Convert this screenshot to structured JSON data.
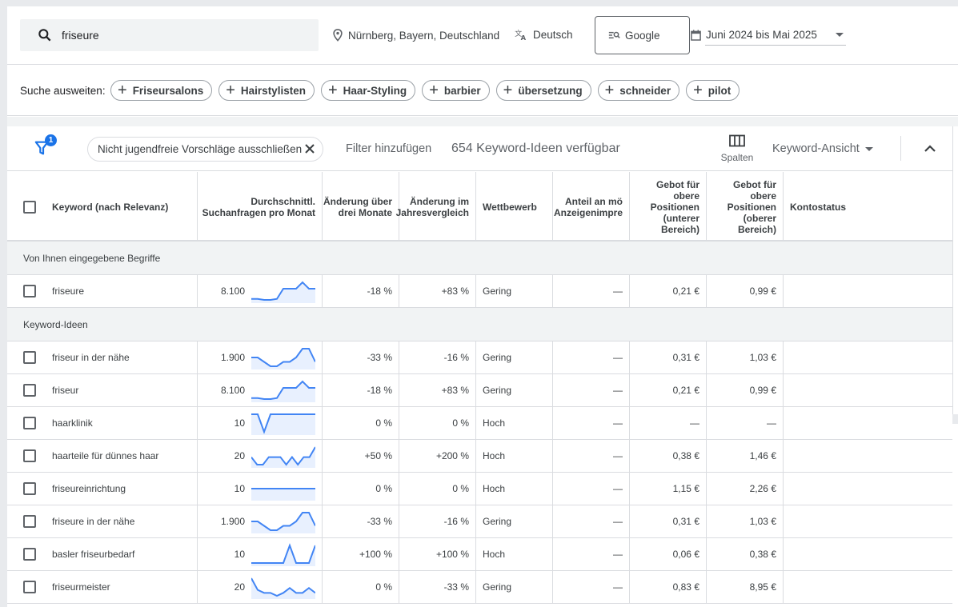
{
  "search": {
    "query": "friseure",
    "location": "Nürnberg, Bayern, Deutschland",
    "language": "Deutsch",
    "network": "Google",
    "date_range": "Juni 2024 bis Mai 2025"
  },
  "broaden": {
    "label": "Suche ausweiten:",
    "chips": [
      "Friseursalons",
      "Hairstylisten",
      "Haar-Styling",
      "barbier",
      "übersetzung",
      "schneider",
      "pilot"
    ]
  },
  "filterbar": {
    "filter_count": "1",
    "active_filter": "Nicht jugendfreie Vorschläge ausschließen",
    "add_filter": "Filter hinzufügen",
    "idea_count": "654 Keyword-Ideen verfügbar",
    "columns_label": "Spalten",
    "view_label": "Keyword-Ansicht"
  },
  "columns": {
    "keyword": "Keyword (nach Relevanz)",
    "avg_searches": "Durchschnittl. Suchanfragen pro Monat",
    "change_3m": "Änderung über drei Monate",
    "change_yoy": "Änderung im Jahresvergleich",
    "competition": "Wettbewerb",
    "impression_share": "Anteil an mö Anzeigenimpre",
    "bid_low": "Gebot für obere Positionen (unterer Bereich)",
    "bid_high": "Gebot für obere Positionen (oberer Bereich)",
    "account_status": "Kontostatus"
  },
  "sections": {
    "entered": "Von Ihnen eingegebene Begriffe",
    "ideas": "Keyword-Ideen"
  },
  "entered_rows": [
    {
      "keyword": "friseure",
      "searches": "8.100",
      "trend": [
        2,
        2,
        1.6,
        1.6,
        2,
        6,
        6,
        6,
        8.5,
        6,
        6
      ],
      "change_3m": "-18 %",
      "change_yoy": "+83 %",
      "competition": "Gering",
      "share": "—",
      "bid_low": "0,21 €",
      "bid_high": "0,99 €"
    }
  ],
  "idea_rows": [
    {
      "keyword": "friseur in der nähe",
      "searches": "1.900",
      "trend": [
        6,
        6,
        4,
        2,
        2,
        4,
        4,
        6,
        10,
        10,
        4
      ],
      "change_3m": "-33 %",
      "change_yoy": "-16 %",
      "competition": "Gering",
      "share": "—",
      "bid_low": "0,31 €",
      "bid_high": "1,03 €"
    },
    {
      "keyword": "friseur",
      "searches": "8.100",
      "trend": [
        2,
        2,
        1.6,
        1.6,
        2,
        6,
        6,
        6,
        8.5,
        6,
        6
      ],
      "change_3m": "-18 %",
      "change_yoy": "+83 %",
      "competition": "Gering",
      "share": "—",
      "bid_low": "0,21 €",
      "bid_high": "0,99 €"
    },
    {
      "keyword": "haarklinik",
      "searches": "10",
      "trend": [
        10,
        10,
        0,
        10,
        10,
        10,
        10,
        10,
        10,
        10,
        10
      ],
      "change_3m": "0 %",
      "change_yoy": "0 %",
      "competition": "Hoch",
      "share": "—",
      "bid_low": "—",
      "bid_high": "—"
    },
    {
      "keyword": "haarteile für dünnes haar",
      "searches": "20",
      "trend": [
        4,
        1,
        1,
        4,
        4,
        4,
        1,
        4,
        1,
        4,
        4,
        8
      ],
      "change_3m": "+50 %",
      "change_yoy": "+200 %",
      "competition": "Hoch",
      "share": "—",
      "bid_low": "0,38 €",
      "bid_high": "1,46 €"
    },
    {
      "keyword": "friseureinrichtung",
      "searches": "10",
      "trend": [
        5,
        5,
        5,
        5,
        5,
        5,
        5,
        5,
        5,
        5,
        5
      ],
      "change_3m": "0 %",
      "change_yoy": "0 %",
      "competition": "Hoch",
      "share": "—",
      "bid_low": "1,15 €",
      "bid_high": "2,26 €"
    },
    {
      "keyword": "friseure in der nähe",
      "searches": "1.900",
      "trend": [
        6,
        6,
        4,
        2,
        2,
        4,
        4,
        6,
        10,
        10,
        4
      ],
      "change_3m": "-33 %",
      "change_yoy": "-16 %",
      "competition": "Gering",
      "share": "—",
      "bid_low": "0,31 €",
      "bid_high": "1,03 €"
    },
    {
      "keyword": "basler friseurbedarf",
      "searches": "10",
      "trend": [
        0,
        0,
        0,
        0,
        0,
        0,
        10,
        0,
        0,
        0,
        10
      ],
      "change_3m": "+100 %",
      "change_yoy": "+100 %",
      "competition": "Hoch",
      "share": "—",
      "bid_low": "0,06 €",
      "bid_high": "0,38 €"
    },
    {
      "keyword": "friseurmeister",
      "searches": "20",
      "trend": [
        10,
        4,
        2.5,
        2.5,
        1,
        2.5,
        5,
        2.5,
        2.5,
        5,
        2.5
      ],
      "change_3m": "0 %",
      "change_yoy": "-33 %",
      "competition": "Gering",
      "share": "—",
      "bid_low": "0,83 €",
      "bid_high": "8,95 €"
    }
  ],
  "colors": {
    "accent": "#1a73e8",
    "spark_line": "#4285f4",
    "spark_fill": "#e8f0fe"
  }
}
